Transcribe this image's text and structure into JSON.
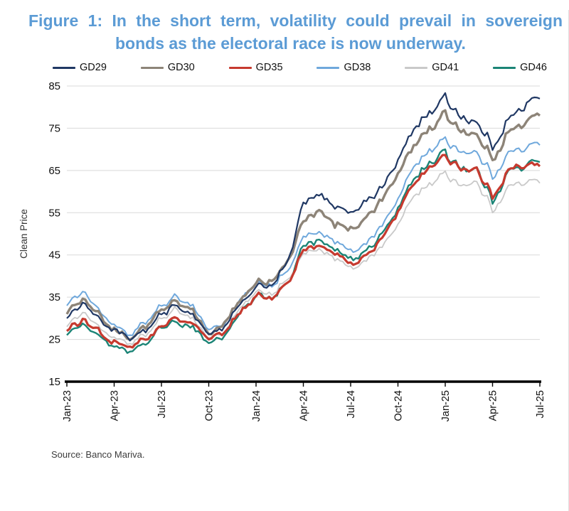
{
  "title": "Figure 1: In the short term, volatility could prevail in sovereign bonds as the electoral race is now underway.",
  "source": "Source: Banco Mariva.",
  "colors": {
    "title": "#5b9bd5",
    "grid": "#d9d9d9",
    "axis": "#000000"
  },
  "chart_data": {
    "type": "line",
    "title": "Figure 1: In the short term, volatility could prevail in sovereign bonds as the electoral race is now underway.",
    "xlabel": "",
    "ylabel": "Clean Price",
    "ylim": [
      15,
      85
    ],
    "yticks": [
      15,
      25,
      35,
      45,
      55,
      65,
      75,
      85
    ],
    "grid": "horizontal",
    "legend_position": "top",
    "categories": [
      "Jan-23",
      "Feb-23",
      "Mar-23",
      "Apr-23",
      "May-23",
      "Jun-23",
      "Jul-23",
      "Aug-23",
      "Sep-23",
      "Oct-23",
      "Nov-23",
      "Dec-23",
      "Jan-24",
      "Feb-24",
      "Mar-24",
      "Apr-24",
      "May-24",
      "Jun-24",
      "Jul-24",
      "Aug-24",
      "Sep-24",
      "Oct-24",
      "Nov-24",
      "Dec-24",
      "Jan-25",
      "Feb-25",
      "Mar-25",
      "Apr-25",
      "May-25",
      "Jun-25",
      "Jul-25"
    ],
    "xtick_labels": [
      "Jan-23",
      "Apr-23",
      "Jul-23",
      "Oct-23",
      "Jan-24",
      "Apr-24",
      "Jul-24",
      "Oct-24",
      "Jan-25",
      "Apr-25",
      "Jul-25"
    ],
    "series": [
      {
        "name": "GD29",
        "color": "#203864",
        "width": 2.2,
        "values": [
          30,
          34,
          30,
          27,
          25,
          27,
          31,
          33,
          31,
          26,
          28,
          33,
          37,
          38,
          43,
          57,
          59,
          56,
          55,
          58,
          61,
          67,
          75,
          79,
          82,
          78,
          76,
          71,
          77,
          80,
          82
        ]
      },
      {
        "name": "GD30",
        "color": "#8d8478",
        "width": 3.4,
        "values": [
          31,
          35,
          31,
          27,
          25,
          28,
          32,
          34,
          32,
          26,
          29,
          34,
          38,
          39,
          43,
          53,
          55,
          52,
          51,
          54,
          58,
          64,
          71,
          75,
          78,
          75,
          73,
          68,
          74,
          76,
          78
        ]
      },
      {
        "name": "GD35",
        "color": "#c63a2f",
        "width": 3.2,
        "values": [
          27,
          30,
          27,
          24,
          23,
          25,
          28,
          30,
          29,
          25,
          27,
          31,
          35,
          35,
          38,
          46,
          47,
          45,
          43,
          45,
          49,
          55,
          62,
          66,
          68,
          66,
          65,
          59,
          65,
          66,
          66
        ]
      },
      {
        "name": "GD38",
        "color": "#6fa8dc",
        "width": 2.0,
        "values": [
          33,
          37,
          32,
          28,
          26,
          29,
          33,
          35,
          33,
          27,
          29,
          34,
          38,
          38,
          41,
          49,
          50,
          48,
          46,
          48,
          52,
          58,
          66,
          70,
          72,
          70,
          69,
          64,
          69,
          70,
          71
        ]
      },
      {
        "name": "GD41",
        "color": "#c9c9c9",
        "width": 1.8,
        "values": [
          28,
          32,
          28,
          25,
          24,
          26,
          30,
          32,
          30,
          25,
          27,
          32,
          36,
          36,
          39,
          45,
          46,
          44,
          42,
          44,
          47,
          52,
          59,
          62,
          64,
          62,
          62,
          56,
          61,
          62,
          62
        ]
      },
      {
        "name": "GD46",
        "color": "#1b8476",
        "width": 2.4,
        "values": [
          26,
          29,
          26,
          23,
          22,
          24,
          28,
          29,
          28,
          24,
          26,
          31,
          35,
          35,
          38,
          47,
          48,
          46,
          44,
          46,
          50,
          56,
          63,
          67,
          69,
          66,
          65,
          58,
          65,
          66,
          67
        ]
      }
    ],
    "draw_order": [
      "GD41",
      "GD38",
      "GD46",
      "GD35",
      "GD30",
      "GD29"
    ]
  }
}
